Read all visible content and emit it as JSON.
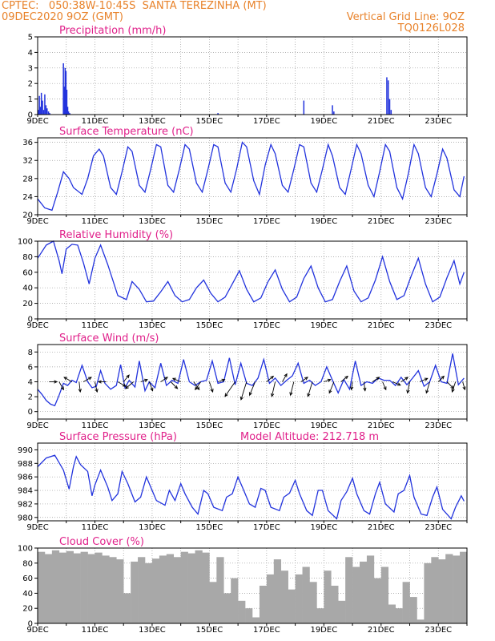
{
  "header": {
    "line1": "CPTEC:   050:38W-10:45S  SANTA TEREZINHA (MT)",
    "line2": "09DEC2020 9OZ (GMT)",
    "grid_note": "Vertical Grid Line: 9OZ",
    "code": "TQ0126L028"
  },
  "colors": {
    "header": "#e8822a",
    "title": "#e0208a",
    "series": "#2233dd",
    "cloud": "#a8a8a8"
  },
  "x_dates": [
    "9DEC",
    "11DEC",
    "13DEC",
    "15DEC",
    "17DEC",
    "19DEC",
    "21DEC",
    "23DEC"
  ],
  "chart_data": [
    {
      "id": "precip",
      "type": "bar",
      "title": "Precipitation (mm/h)",
      "ylim": [
        0,
        5
      ],
      "yticks": [
        0,
        1,
        2,
        3,
        4,
        5
      ],
      "x": [
        0.03,
        0.06,
        0.09,
        0.13,
        0.17,
        0.21,
        0.25,
        0.29,
        0.33,
        0.38,
        0.42,
        0.9,
        0.93,
        0.96,
        0.99,
        1.02,
        1.05,
        1.08,
        1.12,
        6.3,
        9.3,
        10.3,
        10.35,
        12.2,
        12.25,
        12.3,
        12.35
      ],
      "values": [
        0.3,
        1.2,
        0.5,
        1.4,
        0.9,
        0.3,
        1.3,
        0.6,
        0.4,
        0.2,
        0.1,
        3.3,
        1.8,
        3.0,
        2.8,
        1.6,
        0.5,
        0.2,
        0.1,
        0.1,
        0.9,
        0.6,
        0.2,
        2.4,
        2.2,
        1.0,
        0.3
      ]
    },
    {
      "id": "temp",
      "type": "line",
      "title": "Surface Temperature (nC)",
      "ylim": [
        20,
        37
      ],
      "yticks": [
        20,
        24,
        28,
        32,
        36
      ],
      "x": [
        0,
        0.25,
        0.5,
        0.7,
        0.9,
        1.1,
        1.25,
        1.55,
        1.75,
        1.95,
        2.15,
        2.3,
        2.55,
        2.75,
        2.95,
        3.15,
        3.3,
        3.55,
        3.75,
        3.95,
        4.15,
        4.3,
        4.55,
        4.75,
        4.95,
        5.15,
        5.3,
        5.55,
        5.75,
        5.95,
        6.15,
        6.3,
        6.55,
        6.75,
        6.95,
        7.15,
        7.3,
        7.55,
        7.75,
        7.95,
        8.15,
        8.3,
        8.55,
        8.75,
        8.95,
        9.15,
        9.3,
        9.55,
        9.75,
        9.95,
        10.15,
        10.3,
        10.55,
        10.75,
        10.95,
        11.15,
        11.3,
        11.55,
        11.75,
        11.95,
        12.15,
        12.3,
        12.55,
        12.75,
        12.95,
        13.15,
        13.3,
        13.55,
        13.75,
        13.95,
        14.15,
        14.3,
        14.55,
        14.75,
        14.9
      ],
      "values": [
        23.5,
        21.5,
        21,
        25,
        29.5,
        28,
        26,
        24.5,
        28,
        33,
        34.5,
        33,
        26,
        24.5,
        29.5,
        35,
        34,
        26.5,
        25,
        30,
        35.5,
        35,
        26.5,
        25,
        30,
        35.5,
        34.5,
        27,
        25,
        30,
        35.5,
        35,
        27,
        25,
        30,
        36,
        35,
        27.5,
        24.5,
        31,
        35.5,
        33.5,
        26.5,
        25,
        30,
        35.5,
        35,
        27,
        25,
        30,
        35.5,
        33,
        26,
        24.5,
        30,
        35.5,
        33.5,
        26.5,
        24,
        29.5,
        35.5,
        34,
        26,
        23.5,
        29,
        35.5,
        33.5,
        26,
        24,
        29,
        34.5,
        32.5,
        25.5,
        24,
        28.5
      ]
    },
    {
      "id": "rh",
      "type": "line",
      "title": "Relative Humidity (%)",
      "ylim": [
        0,
        100
      ],
      "yticks": [
        0,
        20,
        40,
        60,
        80,
        100
      ],
      "x": [
        0,
        0.3,
        0.55,
        0.75,
        0.85,
        1.0,
        1.2,
        1.4,
        1.6,
        1.8,
        2.0,
        2.2,
        2.45,
        2.8,
        3.1,
        3.3,
        3.55,
        3.8,
        4.05,
        4.3,
        4.55,
        4.8,
        5.05,
        5.3,
        5.55,
        5.8,
        6.05,
        6.3,
        6.55,
        6.8,
        7.05,
        7.3,
        7.55,
        7.8,
        8.05,
        8.3,
        8.55,
        8.8,
        9.05,
        9.3,
        9.55,
        9.8,
        10.05,
        10.3,
        10.55,
        10.8,
        11.05,
        11.3,
        11.55,
        11.8,
        12.05,
        12.3,
        12.55,
        12.8,
        13.05,
        13.3,
        13.55,
        13.8,
        14.05,
        14.3,
        14.55,
        14.75,
        14.9
      ],
      "values": [
        78,
        95,
        100,
        75,
        58,
        90,
        96,
        95,
        72,
        45,
        78,
        95,
        70,
        30,
        25,
        48,
        38,
        22,
        23,
        35,
        48,
        30,
        22,
        25,
        40,
        50,
        33,
        22,
        28,
        45,
        62,
        38,
        22,
        27,
        48,
        63,
        38,
        22,
        28,
        52,
        68,
        40,
        22,
        25,
        48,
        68,
        36,
        22,
        27,
        50,
        80,
        48,
        25,
        30,
        55,
        78,
        45,
        22,
        28,
        53,
        75,
        45,
        60
      ]
    },
    {
      "id": "wind",
      "type": "line",
      "title": "Surface Wind (m/s)",
      "ylim": [
        -1,
        9
      ],
      "yticks": [
        0,
        2,
        4,
        6,
        8
      ],
      "x": [
        0,
        0.15,
        0.3,
        0.45,
        0.6,
        0.75,
        0.9,
        1.05,
        1.2,
        1.35,
        1.55,
        1.75,
        1.9,
        2.05,
        2.2,
        2.35,
        2.55,
        2.75,
        2.9,
        3.05,
        3.2,
        3.4,
        3.55,
        3.75,
        3.9,
        4.1,
        4.3,
        4.5,
        4.7,
        4.9,
        5.1,
        5.3,
        5.5,
        5.7,
        5.9,
        6.1,
        6.3,
        6.5,
        6.7,
        6.9,
        7.1,
        7.3,
        7.5,
        7.7,
        7.9,
        8.1,
        8.3,
        8.5,
        8.7,
        8.9,
        9.1,
        9.3,
        9.5,
        9.7,
        9.9,
        10.1,
        10.3,
        10.5,
        10.7,
        10.9,
        11.1,
        11.3,
        11.5,
        11.7,
        11.9,
        12.1,
        12.3,
        12.5,
        12.7,
        12.9,
        13.1,
        13.3,
        13.5,
        13.7,
        13.9,
        14.1,
        14.3,
        14.5,
        14.7,
        14.9
      ],
      "values": [
        3,
        2.3,
        1.5,
        1,
        0.8,
        2.2,
        3.8,
        3.5,
        4.2,
        3.9,
        6.2,
        4,
        3.2,
        3.4,
        5.5,
        3.8,
        3,
        3.5,
        6.3,
        3.2,
        4.2,
        3.3,
        6.8,
        2.8,
        4,
        3.2,
        6.5,
        3.5,
        4.2,
        3.8,
        7,
        4,
        3.5,
        4,
        4.2,
        6.8,
        3.8,
        4,
        7.2,
        3.6,
        6.5,
        3.8,
        3.5,
        4.5,
        7,
        3.8,
        4.5,
        3.5,
        4.2,
        4.8,
        6.5,
        3.8,
        4.2,
        3.5,
        4,
        6,
        4.2,
        2.5,
        4.3,
        3,
        6.8,
        3.5,
        4,
        3.8,
        4.5,
        4.2,
        4.2,
        3.5,
        4.6,
        3.6,
        4.5,
        5.5,
        3.4,
        4,
        6.2,
        4,
        3.8,
        7.8,
        3.6,
        4.5
      ],
      "vectors": [
        {
          "x": 0.4,
          "u": 0.7,
          "v": 0.0
        },
        {
          "x": 0.75,
          "u": 0.4,
          "v": -0.7
        },
        {
          "x": 1.2,
          "u": -0.7,
          "v": 0.4
        },
        {
          "x": 1.45,
          "u": 0.1,
          "v": -0.9
        },
        {
          "x": 1.6,
          "u": 0.7,
          "v": 0.4
        },
        {
          "x": 2.0,
          "u": 0.2,
          "v": -0.9
        },
        {
          "x": 2.4,
          "u": -0.7,
          "v": 0.0
        },
        {
          "x": 2.8,
          "u": 0.7,
          "v": -0.4
        },
        {
          "x": 3.0,
          "u": 0.5,
          "v": 0.6
        },
        {
          "x": 3.35,
          "u": -0.7,
          "v": -0.6
        },
        {
          "x": 3.6,
          "u": 0.6,
          "v": 0.2
        },
        {
          "x": 3.9,
          "u": 0.3,
          "v": -0.8
        },
        {
          "x": 4.3,
          "u": 0.6,
          "v": 0.4
        },
        {
          "x": 4.65,
          "u": 0.6,
          "v": -0.6
        },
        {
          "x": 5.0,
          "u": -0.7,
          "v": 0.3
        },
        {
          "x": 5.45,
          "u": 0.5,
          "v": -0.7
        },
        {
          "x": 5.7,
          "u": -0.5,
          "v": -0.7
        },
        {
          "x": 6.0,
          "u": 0.3,
          "v": -0.9
        },
        {
          "x": 6.3,
          "u": 0.6,
          "v": 0.2
        },
        {
          "x": 6.9,
          "u": -0.9,
          "v": -1.3
        },
        {
          "x": 7.3,
          "u": -0.5,
          "v": -1.6
        },
        {
          "x": 7.6,
          "u": -0.5,
          "v": -1.2
        },
        {
          "x": 8.0,
          "u": 0.6,
          "v": 0.5
        },
        {
          "x": 8.3,
          "u": -0.3,
          "v": -1.3
        },
        {
          "x": 8.55,
          "u": 0.4,
          "v": 0.7
        },
        {
          "x": 8.95,
          "u": -0.3,
          "v": -1.2
        },
        {
          "x": 9.2,
          "u": 0.6,
          "v": 0.4
        },
        {
          "x": 9.6,
          "u": -0.4,
          "v": -1.3
        },
        {
          "x": 10.0,
          "u": 0.6,
          "v": 0.2
        },
        {
          "x": 10.35,
          "u": -0.4,
          "v": -1.0
        },
        {
          "x": 10.6,
          "u": 0.6,
          "v": 0.5
        },
        {
          "x": 11.0,
          "u": -0.1,
          "v": -0.7
        },
        {
          "x": 11.4,
          "u": 0.1,
          "v": -0.8
        },
        {
          "x": 11.7,
          "u": 0.6,
          "v": 0.4
        },
        {
          "x": 12.05,
          "u": 0.3,
          "v": -0.7
        },
        {
          "x": 12.4,
          "u": 0.7,
          "v": -0.3
        },
        {
          "x": 12.7,
          "u": 0.6,
          "v": 0.4
        },
        {
          "x": 13.0,
          "u": -0.2,
          "v": -1.0
        },
        {
          "x": 13.35,
          "u": 0.7,
          "v": 0.3
        },
        {
          "x": 13.7,
          "u": -0.3,
          "v": -1.0
        },
        {
          "x": 14.0,
          "u": 0.5,
          "v": 0.5
        },
        {
          "x": 14.3,
          "u": 0.6,
          "v": -0.6
        },
        {
          "x": 14.6,
          "u": -0.3,
          "v": -0.9
        },
        {
          "x": 14.85,
          "u": 0.2,
          "v": -0.7
        }
      ]
    },
    {
      "id": "pres",
      "type": "line",
      "title": "Surface Pressure (hPa)",
      "note": "Model Altitude: 212.718  m",
      "ylim": [
        979.5,
        991
      ],
      "yticks": [
        980,
        982,
        984,
        986,
        988,
        990
      ],
      "x": [
        0,
        0.3,
        0.6,
        0.9,
        1.1,
        1.25,
        1.35,
        1.5,
        1.75,
        1.9,
        2.0,
        2.2,
        2.45,
        2.6,
        2.8,
        2.95,
        3.15,
        3.4,
        3.6,
        3.8,
        3.95,
        4.15,
        4.45,
        4.6,
        4.8,
        5.0,
        5.15,
        5.4,
        5.6,
        5.8,
        5.95,
        6.15,
        6.45,
        6.6,
        6.8,
        7.0,
        7.15,
        7.4,
        7.6,
        7.8,
        7.95,
        8.15,
        8.45,
        8.6,
        8.8,
        9.0,
        9.15,
        9.4,
        9.6,
        9.8,
        9.95,
        10.15,
        10.45,
        10.6,
        10.8,
        11.0,
        11.15,
        11.4,
        11.6,
        11.8,
        11.95,
        12.15,
        12.45,
        12.6,
        12.8,
        13.0,
        13.15,
        13.4,
        13.6,
        13.8,
        13.95,
        14.15,
        14.45,
        14.6,
        14.8,
        14.9
      ],
      "values": [
        987.5,
        988.8,
        989.2,
        987,
        984.2,
        987.5,
        989,
        987.8,
        986.8,
        983.2,
        984.8,
        987,
        984.5,
        982.5,
        983.5,
        986.8,
        985,
        982.3,
        983,
        986,
        984.5,
        982.5,
        981.8,
        984,
        982.5,
        985,
        983.5,
        981.5,
        980.5,
        984,
        983.5,
        981.5,
        981,
        983,
        983.5,
        986,
        984.5,
        982,
        981.5,
        984.3,
        984,
        981.5,
        981,
        983,
        983.6,
        985.5,
        983.5,
        981,
        980.3,
        984,
        984,
        981,
        979.8,
        982.5,
        983.8,
        985.8,
        983.5,
        981,
        980.5,
        983.5,
        985.2,
        982,
        980.8,
        983.5,
        984,
        986.2,
        983,
        980.5,
        980.3,
        983,
        984.5,
        981.2,
        979.8,
        981.5,
        983.2,
        982.4
      ]
    },
    {
      "id": "cloud",
      "type": "bar",
      "title": "Cloud Cover (%)",
      "ylim": [
        0,
        100
      ],
      "yticks": [
        0,
        20,
        40,
        60,
        80,
        100
      ],
      "x": [
        0,
        0.25,
        0.5,
        0.75,
        1.0,
        1.25,
        1.5,
        1.75,
        2.0,
        2.25,
        2.5,
        2.75,
        3.0,
        3.25,
        3.5,
        3.75,
        4.0,
        4.25,
        4.5,
        4.75,
        5.0,
        5.25,
        5.5,
        5.75,
        6.0,
        6.25,
        6.5,
        6.75,
        7.0,
        7.25,
        7.5,
        7.75,
        8.0,
        8.25,
        8.5,
        8.75,
        9.0,
        9.25,
        9.5,
        9.75,
        10.0,
        10.25,
        10.5,
        10.75,
        11.0,
        11.25,
        11.5,
        11.75,
        12.0,
        12.25,
        12.5,
        12.75,
        13.0,
        13.25,
        13.5,
        13.75,
        14.0,
        14.25,
        14.5,
        14.75
      ],
      "values": [
        95,
        92,
        97,
        94,
        96,
        93,
        95,
        92,
        94,
        90,
        88,
        85,
        40,
        82,
        88,
        80,
        86,
        90,
        92,
        88,
        95,
        93,
        97,
        94,
        55,
        88,
        40,
        60,
        30,
        20,
        8,
        50,
        65,
        85,
        70,
        45,
        65,
        75,
        55,
        20,
        70,
        50,
        30,
        88,
        75,
        82,
        90,
        60,
        75,
        25,
        20,
        55,
        35,
        5,
        80,
        88,
        85,
        92,
        90,
        95
      ]
    }
  ]
}
